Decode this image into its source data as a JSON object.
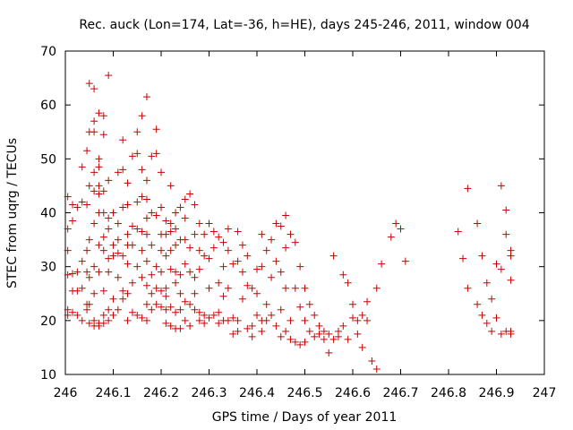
{
  "chart_data": {
    "type": "scatter",
    "title": "Rec. auck (Lon=174, Lat=-36, h=HE), days 245-246, 2011, window 004",
    "xlabel": "GPS time / Days of year 2011",
    "ylabel": "STEC from uqrg / TECUs",
    "xlim": [
      246,
      247
    ],
    "ylim": [
      10,
      70
    ],
    "xticks": [
      "246",
      "246.1",
      "246.2",
      "246.3",
      "246.4",
      "246.5",
      "246.6",
      "246.7",
      "246.8",
      "246.9",
      "247"
    ],
    "yticks": [
      "10",
      "20",
      "30",
      "40",
      "50",
      "60",
      "70"
    ],
    "grid": false,
    "marker": "+",
    "color": "#cc0000",
    "points": [
      [
        246.005,
        43
      ],
      [
        246.005,
        37
      ],
      [
        246.005,
        33
      ],
      [
        246.005,
        28.5
      ],
      [
        246.005,
        22
      ],
      [
        246.005,
        21
      ],
      [
        246.015,
        41.5
      ],
      [
        246.015,
        38.5
      ],
      [
        246.015,
        28.7
      ],
      [
        246.015,
        25.5
      ],
      [
        246.015,
        21.5
      ],
      [
        246.025,
        41
      ],
      [
        246.025,
        29
      ],
      [
        246.025,
        25.5
      ],
      [
        246.025,
        21
      ],
      [
        246.035,
        48.5
      ],
      [
        246.035,
        42
      ],
      [
        246.035,
        31
      ],
      [
        246.035,
        26
      ],
      [
        246.035,
        20
      ],
      [
        246.045,
        51.5
      ],
      [
        246.045,
        41.5
      ],
      [
        246.045,
        33
      ],
      [
        246.045,
        29
      ],
      [
        246.045,
        23
      ],
      [
        246.045,
        22
      ],
      [
        246.05,
        64
      ],
      [
        246.05,
        55
      ],
      [
        246.05,
        45
      ],
      [
        246.05,
        35
      ],
      [
        246.05,
        28
      ],
      [
        246.05,
        23
      ],
      [
        246.05,
        19.5
      ],
      [
        246.06,
        63
      ],
      [
        246.06,
        57
      ],
      [
        246.06,
        55
      ],
      [
        246.06,
        47.5
      ],
      [
        246.06,
        44
      ],
      [
        246.06,
        38
      ],
      [
        246.06,
        30
      ],
      [
        246.06,
        25
      ],
      [
        246.06,
        20
      ],
      [
        246.06,
        19
      ],
      [
        246.07,
        58.5
      ],
      [
        246.07,
        50
      ],
      [
        246.07,
        48.5
      ],
      [
        246.07,
        45
      ],
      [
        246.07,
        43.5
      ],
      [
        246.07,
        40
      ],
      [
        246.07,
        34
      ],
      [
        246.07,
        29
      ],
      [
        246.07,
        19.5
      ],
      [
        246.07,
        19
      ],
      [
        246.08,
        58
      ],
      [
        246.08,
        54.5
      ],
      [
        246.08,
        44
      ],
      [
        246.08,
        40
      ],
      [
        246.08,
        35.5
      ],
      [
        246.08,
        33
      ],
      [
        246.08,
        25.5
      ],
      [
        246.08,
        21
      ],
      [
        246.08,
        19.5
      ],
      [
        246.09,
        65.5
      ],
      [
        246.09,
        46
      ],
      [
        246.09,
        39
      ],
      [
        246.09,
        37
      ],
      [
        246.09,
        31.5
      ],
      [
        246.09,
        29
      ],
      [
        246.09,
        22
      ],
      [
        246.09,
        20
      ],
      [
        246.1,
        40
      ],
      [
        246.1,
        34
      ],
      [
        246.1,
        32
      ],
      [
        246.1,
        24
      ],
      [
        246.1,
        21
      ],
      [
        246.11,
        47.5
      ],
      [
        246.11,
        38
      ],
      [
        246.11,
        35
      ],
      [
        246.11,
        32.5
      ],
      [
        246.11,
        28
      ],
      [
        246.11,
        22
      ],
      [
        246.12,
        53.5
      ],
      [
        246.12,
        48
      ],
      [
        246.12,
        41
      ],
      [
        246.12,
        32
      ],
      [
        246.12,
        25.5
      ],
      [
        246.12,
        24
      ],
      [
        246.13,
        45.5
      ],
      [
        246.13,
        41.5
      ],
      [
        246.13,
        36
      ],
      [
        246.13,
        34
      ],
      [
        246.13,
        30.5
      ],
      [
        246.13,
        25
      ],
      [
        246.13,
        20
      ],
      [
        246.14,
        50.5
      ],
      [
        246.14,
        37.5
      ],
      [
        246.14,
        34
      ],
      [
        246.14,
        27
      ],
      [
        246.14,
        21.5
      ],
      [
        246.15,
        55
      ],
      [
        246.15,
        51
      ],
      [
        246.15,
        42
      ],
      [
        246.15,
        37
      ],
      [
        246.15,
        30
      ],
      [
        246.15,
        21
      ],
      [
        246.16,
        58
      ],
      [
        246.16,
        48
      ],
      [
        246.16,
        43
      ],
      [
        246.16,
        36.5
      ],
      [
        246.16,
        33
      ],
      [
        246.16,
        28
      ],
      [
        246.16,
        20.5
      ],
      [
        246.17,
        61.5
      ],
      [
        246.17,
        46
      ],
      [
        246.17,
        42.5
      ],
      [
        246.17,
        39
      ],
      [
        246.17,
        36
      ],
      [
        246.17,
        31
      ],
      [
        246.17,
        26.5
      ],
      [
        246.17,
        23
      ],
      [
        246.17,
        20
      ],
      [
        246.18,
        50.5
      ],
      [
        246.18,
        40
      ],
      [
        246.18,
        34
      ],
      [
        246.18,
        28.5
      ],
      [
        246.18,
        25
      ],
      [
        246.18,
        22
      ],
      [
        246.19,
        55.5
      ],
      [
        246.19,
        51
      ],
      [
        246.19,
        39.5
      ],
      [
        246.19,
        30
      ],
      [
        246.19,
        26
      ],
      [
        246.19,
        23
      ],
      [
        246.2,
        47.5
      ],
      [
        246.2,
        41
      ],
      [
        246.2,
        36
      ],
      [
        246.2,
        33
      ],
      [
        246.2,
        29
      ],
      [
        246.2,
        25.5
      ],
      [
        246.2,
        22.5
      ],
      [
        246.21,
        38.5
      ],
      [
        246.21,
        36
      ],
      [
        246.21,
        32
      ],
      [
        246.21,
        26
      ],
      [
        246.21,
        24.5
      ],
      [
        246.21,
        22
      ],
      [
        246.21,
        19.5
      ],
      [
        246.22,
        45
      ],
      [
        246.22,
        38
      ],
      [
        246.22,
        36.5
      ],
      [
        246.22,
        33
      ],
      [
        246.22,
        29.5
      ],
      [
        246.22,
        22.5
      ],
      [
        246.22,
        19
      ],
      [
        246.23,
        40
      ],
      [
        246.23,
        37
      ],
      [
        246.23,
        34
      ],
      [
        246.23,
        29
      ],
      [
        246.23,
        27
      ],
      [
        246.23,
        21.5
      ],
      [
        246.23,
        18.5
      ],
      [
        246.24,
        41
      ],
      [
        246.24,
        35
      ],
      [
        246.24,
        28.5
      ],
      [
        246.24,
        25
      ],
      [
        246.24,
        22
      ],
      [
        246.24,
        18.5
      ],
      [
        246.25,
        42.5
      ],
      [
        246.25,
        39
      ],
      [
        246.25,
        35
      ],
      [
        246.25,
        30.5
      ],
      [
        246.25,
        23.5
      ],
      [
        246.25,
        20
      ],
      [
        246.26,
        43.5
      ],
      [
        246.26,
        33.5
      ],
      [
        246.26,
        29
      ],
      [
        246.26,
        23
      ],
      [
        246.26,
        19
      ],
      [
        246.27,
        41.5
      ],
      [
        246.27,
        36
      ],
      [
        246.27,
        28
      ],
      [
        246.27,
        25
      ],
      [
        246.27,
        22
      ],
      [
        246.28,
        38
      ],
      [
        246.28,
        33
      ],
      [
        246.28,
        29.5
      ],
      [
        246.28,
        21.5
      ],
      [
        246.28,
        20
      ],
      [
        246.29,
        36
      ],
      [
        246.29,
        32
      ],
      [
        246.29,
        21
      ],
      [
        246.29,
        19.5
      ],
      [
        246.3,
        38
      ],
      [
        246.3,
        31.5
      ],
      [
        246.3,
        26
      ],
      [
        246.3,
        20.5
      ],
      [
        246.31,
        36.5
      ],
      [
        246.31,
        33.5
      ],
      [
        246.31,
        21
      ],
      [
        246.32,
        35.5
      ],
      [
        246.32,
        27
      ],
      [
        246.32,
        21.5
      ],
      [
        246.32,
        19.5
      ],
      [
        246.33,
        34.5
      ],
      [
        246.33,
        30
      ],
      [
        246.33,
        24.5
      ],
      [
        246.33,
        20
      ],
      [
        246.34,
        37
      ],
      [
        246.34,
        33
      ],
      [
        246.34,
        26
      ],
      [
        246.34,
        20
      ],
      [
        246.35,
        30.5
      ],
      [
        246.35,
        20.5
      ],
      [
        246.35,
        17.5
      ],
      [
        246.36,
        36.5
      ],
      [
        246.36,
        31
      ],
      [
        246.36,
        20
      ],
      [
        246.36,
        18
      ],
      [
        246.37,
        34
      ],
      [
        246.37,
        29
      ],
      [
        246.37,
        24
      ],
      [
        246.38,
        32
      ],
      [
        246.38,
        26.5
      ],
      [
        246.38,
        18.5
      ],
      [
        246.39,
        26
      ],
      [
        246.39,
        19
      ],
      [
        246.39,
        17
      ],
      [
        246.4,
        29.5
      ],
      [
        246.4,
        25
      ],
      [
        246.4,
        21
      ],
      [
        246.41,
        36
      ],
      [
        246.41,
        30
      ],
      [
        246.41,
        20
      ],
      [
        246.41,
        18
      ],
      [
        246.42,
        33
      ],
      [
        246.42,
        23
      ],
      [
        246.42,
        20
      ],
      [
        246.43,
        35
      ],
      [
        246.43,
        28
      ],
      [
        246.43,
        21
      ],
      [
        246.44,
        38
      ],
      [
        246.44,
        31
      ],
      [
        246.44,
        19
      ],
      [
        246.45,
        37.5
      ],
      [
        246.45,
        29
      ],
      [
        246.45,
        22
      ],
      [
        246.45,
        17
      ],
      [
        246.46,
        39.5
      ],
      [
        246.46,
        33.5
      ],
      [
        246.46,
        26
      ],
      [
        246.46,
        18
      ],
      [
        246.47,
        36
      ],
      [
        246.47,
        20
      ],
      [
        246.47,
        16.5
      ],
      [
        246.48,
        34.5
      ],
      [
        246.48,
        26
      ],
      [
        246.48,
        16
      ],
      [
        246.49,
        30
      ],
      [
        246.49,
        22.5
      ],
      [
        246.49,
        15.5
      ],
      [
        246.5,
        26
      ],
      [
        246.5,
        20
      ],
      [
        246.5,
        16
      ],
      [
        246.51,
        23
      ],
      [
        246.51,
        18
      ],
      [
        246.52,
        21
      ],
      [
        246.52,
        17
      ],
      [
        246.53,
        19
      ],
      [
        246.53,
        17.5
      ],
      [
        246.54,
        18
      ],
      [
        246.54,
        16.5
      ],
      [
        246.55,
        17.5
      ],
      [
        246.55,
        14
      ],
      [
        246.56,
        32
      ],
      [
        246.56,
        16.5
      ],
      [
        246.57,
        18
      ],
      [
        246.57,
        17
      ],
      [
        246.58,
        28.5
      ],
      [
        246.58,
        19
      ],
      [
        246.59,
        27
      ],
      [
        246.59,
        16.5
      ],
      [
        246.6,
        23
      ],
      [
        246.6,
        20.5
      ],
      [
        246.61,
        20
      ],
      [
        246.61,
        17.5
      ],
      [
        246.62,
        21
      ],
      [
        246.62,
        15
      ],
      [
        246.63,
        23.5
      ],
      [
        246.63,
        20
      ],
      [
        246.64,
        12.5
      ],
      [
        246.65,
        26
      ],
      [
        246.65,
        11
      ],
      [
        246.66,
        30.5
      ],
      [
        246.68,
        35.5
      ],
      [
        246.69,
        38
      ],
      [
        246.7,
        37
      ],
      [
        246.71,
        31
      ],
      [
        246.82,
        36.5
      ],
      [
        246.83,
        31.5
      ],
      [
        246.84,
        44.5
      ],
      [
        246.84,
        26
      ],
      [
        246.86,
        38
      ],
      [
        246.86,
        23
      ],
      [
        246.87,
        32
      ],
      [
        246.87,
        21
      ],
      [
        246.88,
        27
      ],
      [
        246.88,
        19.5
      ],
      [
        246.89,
        24
      ],
      [
        246.89,
        18
      ],
      [
        246.9,
        30.5
      ],
      [
        246.9,
        20.5
      ],
      [
        246.91,
        45
      ],
      [
        246.91,
        29.5
      ],
      [
        246.91,
        17.5
      ],
      [
        246.92,
        40.5
      ],
      [
        246.92,
        36
      ],
      [
        246.92,
        18
      ],
      [
        246.93,
        33
      ],
      [
        246.93,
        32
      ],
      [
        246.93,
        27.5
      ],
      [
        246.93,
        18
      ],
      [
        246.93,
        17.5
      ]
    ]
  }
}
